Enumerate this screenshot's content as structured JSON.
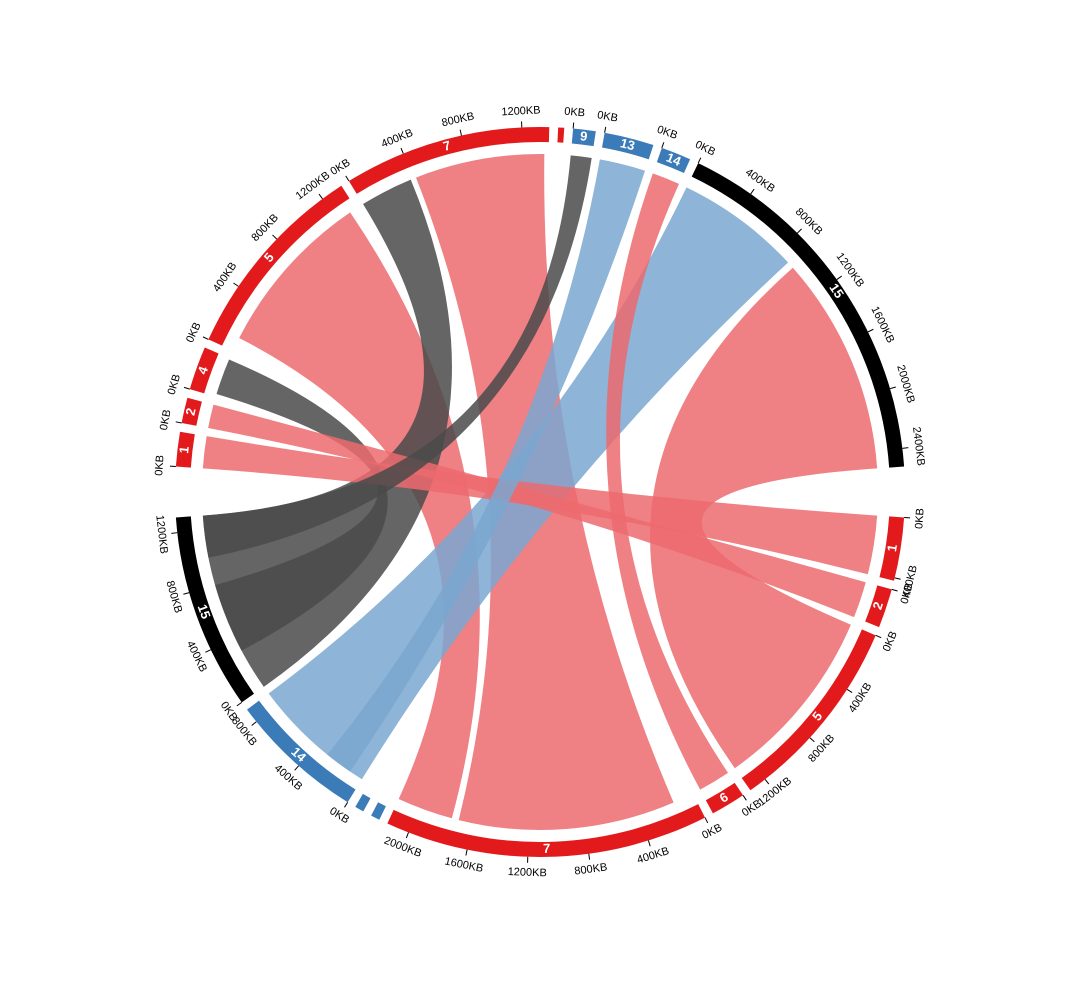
{
  "chart_data": {
    "type": "chord",
    "genomes": [
      {
        "chromosomes": [
          {
            "name": "1",
            "length": 230,
            "color": "#e31a1c",
            "ticks": [
              {
                "value": 0,
                "label": "0KB"
              }
            ]
          },
          {
            "name": "2",
            "length": 170,
            "color": "#e31a1c",
            "ticks": [
              {
                "value": 0,
                "label": "0KB"
              }
            ]
          },
          {
            "name": "4",
            "length": 290,
            "color": "#e31a1c",
            "ticks": [
              {
                "value": 0,
                "label": "0KB"
              }
            ]
          },
          {
            "name": "5",
            "length": 1350,
            "color": "#e31a1c",
            "ticks": [
              {
                "value": 0,
                "label": "0KB"
              },
              {
                "value": 400,
                "label": "400KB"
              },
              {
                "value": 800,
                "label": "800KB"
              },
              {
                "value": 1200,
                "label": "1200KB"
              }
            ]
          },
          {
            "name": "7",
            "length": 1380,
            "color": "#e31a1c",
            "ticks": [
              {
                "value": 0,
                "label": "0KB"
              },
              {
                "value": 400,
                "label": "400KB"
              },
              {
                "value": 800,
                "label": "800KB"
              },
              {
                "value": 1200,
                "label": "1200KB"
              }
            ]
          },
          {
            "name": null,
            "length": 40,
            "color": "#e31a1c",
            "ticks": []
          },
          {
            "name": "9",
            "length": 150,
            "color": "#3b7bb8",
            "ticks": [
              {
                "value": 0,
                "label": "0KB"
              }
            ]
          },
          {
            "name": "13",
            "length": 330,
            "color": "#3b7bb8",
            "ticks": [
              {
                "value": 0,
                "label": "0KB"
              }
            ]
          },
          {
            "name": "14",
            "length": 200,
            "color": "#3b7bb8",
            "ticks": [
              {
                "value": 0,
                "label": "0KB"
              }
            ]
          },
          {
            "name": "15",
            "length": 2520,
            "color": "#000000",
            "ticks": [
              {
                "value": 0,
                "label": "0KB"
              },
              {
                "value": 400,
                "label": "400KB"
              },
              {
                "value": 800,
                "label": "800KB"
              },
              {
                "value": 1200,
                "label": "1200KB"
              },
              {
                "value": 1600,
                "label": "1600KB"
              },
              {
                "value": 2000,
                "label": "2000KB"
              },
              {
                "value": 2400,
                "label": "2400KB"
              }
            ]
          }
        ]
      },
      {
        "chromosomes": [
          {
            "name": "1",
            "length": 420,
            "color": "#e31a1c",
            "ticks": [
              {
                "value": 0,
                "label": "0KB"
              },
              {
                "value": 400,
                "label": "400KB"
              }
            ]
          },
          {
            "name": "2",
            "length": 260,
            "color": "#e31a1c",
            "ticks": [
              {
                "value": 0,
                "label": "0KB"
              }
            ]
          },
          {
            "name": "5",
            "length": 1320,
            "color": "#e31a1c",
            "ticks": [
              {
                "value": 0,
                "label": "0KB"
              },
              {
                "value": 400,
                "label": "400KB"
              },
              {
                "value": 800,
                "label": "800KB"
              },
              {
                "value": 1200,
                "label": "1200KB"
              }
            ]
          },
          {
            "name": "6",
            "length": 230,
            "color": "#e31a1c",
            "ticks": [
              {
                "value": 0,
                "label": "0KB"
              }
            ]
          },
          {
            "name": "7",
            "length": 2150,
            "color": "#e31a1c",
            "ticks": [
              {
                "value": 0,
                "label": "0KB"
              },
              {
                "value": 400,
                "label": "400KB"
              },
              {
                "value": 800,
                "label": "800KB"
              },
              {
                "value": 1200,
                "label": "1200KB"
              },
              {
                "value": 1600,
                "label": "1600KB"
              },
              {
                "value": 2000,
                "label": "2000KB"
              }
            ]
          },
          {
            "name": null,
            "length": 60,
            "color": "#3b7bb8",
            "ticks": []
          },
          {
            "name": null,
            "length": 60,
            "color": "#3b7bb8",
            "ticks": []
          },
          {
            "name": "14",
            "length": 900,
            "color": "#3b7bb8",
            "ticks": [
              {
                "value": 0,
                "label": "0KB"
              },
              {
                "value": 400,
                "label": "400KB"
              },
              {
                "value": 800,
                "label": "800KB"
              }
            ]
          },
          {
            "name": "15",
            "length": 1300,
            "color": "#000000",
            "ticks": [
              {
                "value": 0,
                "label": "0KB"
              },
              {
                "value": 400,
                "label": "400KB"
              },
              {
                "value": 800,
                "label": "800KB"
              },
              {
                "value": 1200,
                "label": "1200KB"
              }
            ]
          }
        ]
      }
    ],
    "links": [
      {
        "source": "7",
        "source_range": [
          420,
          1350
        ],
        "target": "7",
        "target_range": [
          150,
          1700
        ],
        "color": "#ec6a6e"
      },
      {
        "source": "15",
        "source_range": [
          950,
          2520
        ],
        "target": "5",
        "target_range": [
          0,
          1320
        ],
        "color": "#ec6a6e"
      },
      {
        "source": "5",
        "source_range": [
          100,
          1300
        ],
        "target": "7",
        "target_range": [
          1750,
          2150
        ],
        "color": "#ec6a6e"
      },
      {
        "source": "7",
        "source_range": [
          0,
          380
        ],
        "target": "15",
        "target_range": [
          0,
          1300
        ],
        "color": "#4a4a4a"
      },
      {
        "source": "4",
        "source_range": [
          20,
          280
        ],
        "target": "15",
        "target_range": [
          300,
          800
        ],
        "color": "#4a4a4a"
      },
      {
        "source": "15",
        "source_range": [
          0,
          900
        ],
        "target": "14",
        "target_range": [
          0,
          900
        ],
        "color": "#7aa7d0"
      },
      {
        "source": "1",
        "source_range": [
          0,
          230
        ],
        "target": "1",
        "target_range": [
          0,
          420
        ],
        "color": "#ec6a6e"
      },
      {
        "source": "2",
        "source_range": [
          0,
          170
        ],
        "target": "2",
        "target_range": [
          0,
          260
        ],
        "color": "#ec6a6e"
      },
      {
        "source": "9",
        "source_range": [
          0,
          150
        ],
        "target": "15",
        "target_range": [
          1000,
          1300
        ],
        "color": "#4a4a4a"
      },
      {
        "source": "13",
        "source_range": [
          0,
          330
        ],
        "target": "14",
        "target_range": [
          100,
          300
        ],
        "color": "#7aa7d0"
      },
      {
        "source": "14",
        "source_range": [
          0,
          200
        ],
        "target": "6",
        "target_range": [
          0,
          230
        ],
        "color": "#ec6a6e"
      }
    ]
  }
}
